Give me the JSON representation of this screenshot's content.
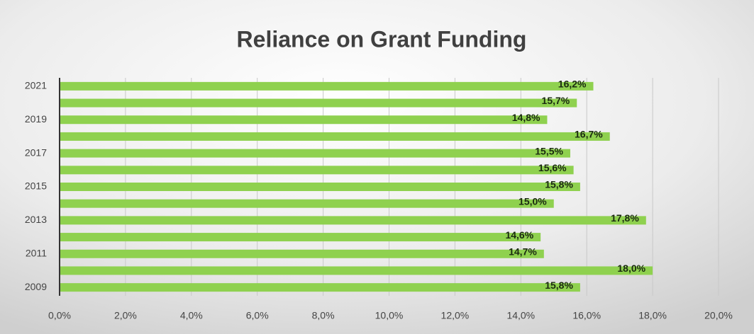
{
  "chart_data": {
    "type": "bar",
    "orientation": "horizontal",
    "title": "Reliance on Grant Funding",
    "categories": [
      "2021",
      null,
      "2019",
      null,
      "2017",
      null,
      "2015",
      null,
      "2013",
      null,
      "2011",
      null,
      "2009"
    ],
    "values": [
      16.2,
      15.7,
      14.8,
      16.7,
      15.5,
      15.6,
      15.8,
      15.0,
      17.8,
      14.6,
      14.7,
      18.0,
      15.8
    ],
    "value_labels": [
      "16,2%",
      "15,7%",
      "14,8%",
      "16,7%",
      "15,5%",
      "15,6%",
      "15,8%",
      "15,0%",
      "17,8%",
      "14,6%",
      "14,7%",
      "18,0%",
      "15,8%"
    ],
    "color": "#8fd14f",
    "xlim": [
      0,
      20
    ],
    "xticks": [
      {
        "value": 0,
        "label": "0,0%"
      },
      {
        "value": 2,
        "label": "2,0%"
      },
      {
        "value": 4,
        "label": "4,0%"
      },
      {
        "value": 6,
        "label": "6,0%"
      },
      {
        "value": 8,
        "label": "8,0%"
      },
      {
        "value": 10,
        "label": "10,0%"
      },
      {
        "value": 12,
        "label": "12,0%"
      },
      {
        "value": 14,
        "label": "14,0%"
      },
      {
        "value": 16,
        "label": "16,0%"
      },
      {
        "value": 18,
        "label": "18,0%"
      },
      {
        "value": 20,
        "label": "20,0%"
      }
    ],
    "grid": true
  }
}
